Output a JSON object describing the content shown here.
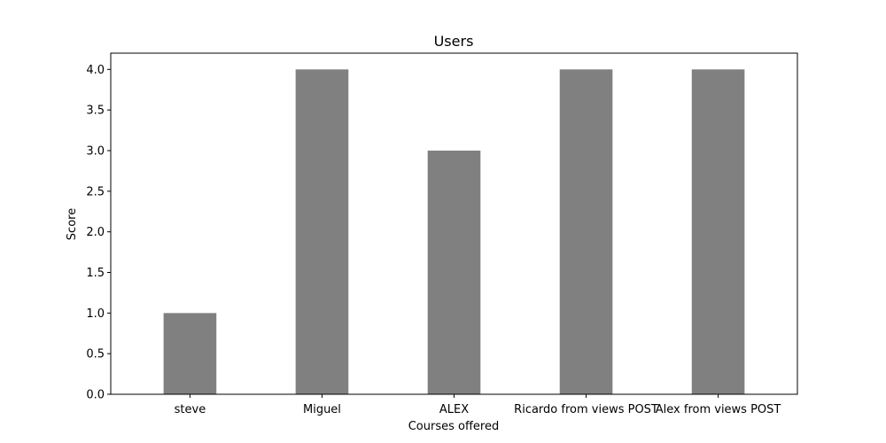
{
  "chart_data": {
    "type": "bar",
    "title": "Users",
    "xlabel": "Courses offered",
    "ylabel": "Score",
    "categories": [
      "steve",
      "Miguel",
      "ALEX",
      "Ricardo from views POST",
      "Alex from views POST"
    ],
    "values": [
      1,
      4,
      3,
      4,
      4
    ],
    "ylim": [
      0,
      4.2
    ],
    "yticks": [
      "0.0",
      "0.5",
      "1.0",
      "1.5",
      "2.0",
      "2.5",
      "3.0",
      "3.5",
      "4.0"
    ],
    "bar_color": "#808080",
    "grid": false,
    "legend": "none"
  }
}
